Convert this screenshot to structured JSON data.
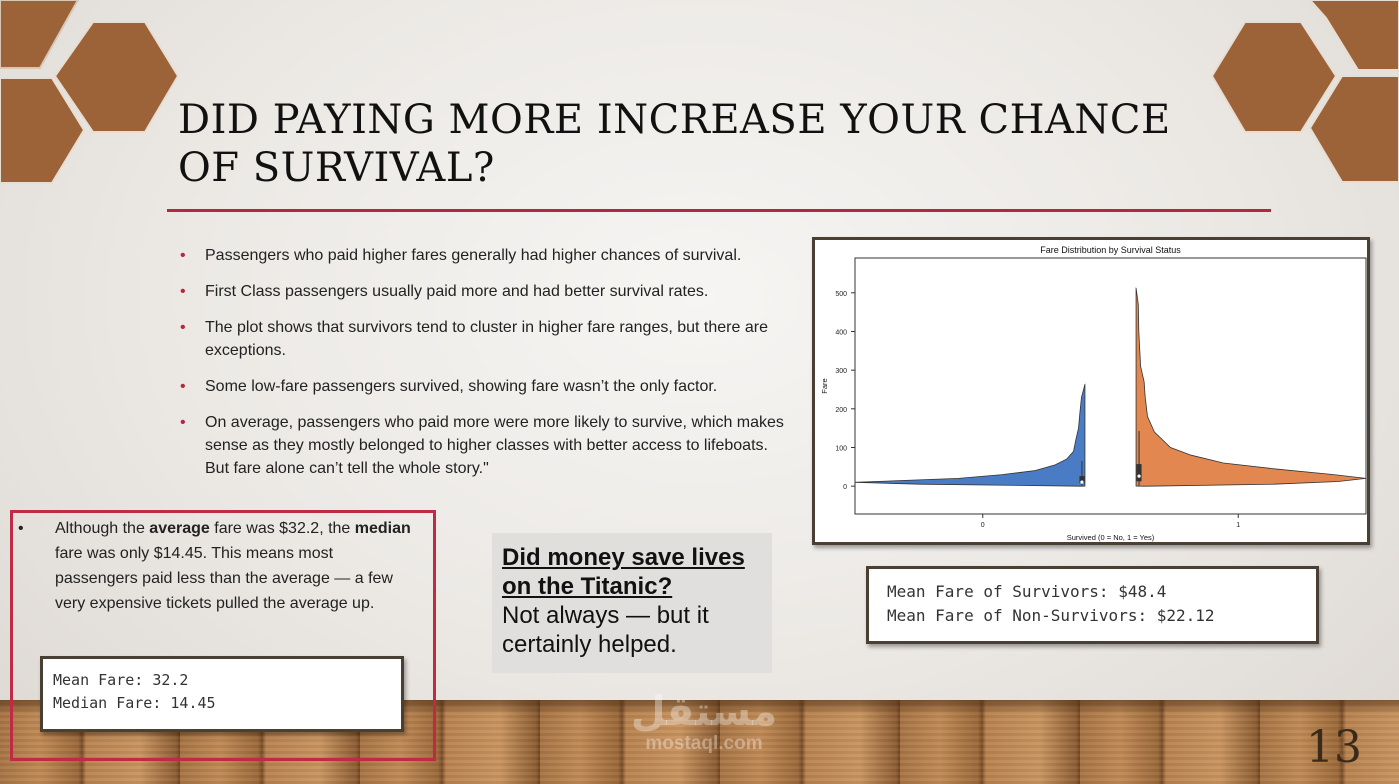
{
  "slide": {
    "title": "Did paying more increase your chance of survival?",
    "page_number": "13",
    "accent_color": "#b5273e",
    "hex_color": "#9c6238"
  },
  "bullets": [
    "Passengers who paid higher fares generally had higher chances of survival.",
    "First Class passengers usually paid more and had better survival rates.",
    "The plot shows that survivors tend to cluster in higher fare ranges, but there are exceptions.",
    "Some low-fare passengers survived, showing fare wasn’t the only factor.",
    "On average, passengers who paid more were more likely to survive, which makes sense as they mostly belonged to higher classes with better access to lifeboats. But fare alone can’t tell the whole story.\""
  ],
  "average_note": {
    "bullet": "•",
    "part1": "Although the ",
    "bold1": "average",
    "part2": " fare was $32.2, the ",
    "bold2": "median",
    "part3": " fare was only $14.45. This means most passengers paid less than the average — a few very expensive tickets pulled the average up."
  },
  "median_output": {
    "line1": "Mean Fare: 32.2",
    "line2": "Median Fare: 14.45"
  },
  "money_box": {
    "heading": "Did money save lives on the Titanic?",
    "body": "Not always — but it certainly helped."
  },
  "survivor_output": {
    "line1": "Mean Fare of Survivors: $48.4",
    "line2": "Mean Fare of Non-Survivors: $22.12"
  },
  "watermark": {
    "arabic": "مستقل",
    "latin": "mostaql.com"
  },
  "chart_data": {
    "type": "violin",
    "title": "Fare Distribution by Survival Status",
    "xlabel": "Survived (0 = No, 1 = Yes)",
    "ylabel": "Fare",
    "categories": [
      "0",
      "1"
    ],
    "ylim": [
      -72,
      590
    ],
    "yticks": [
      0,
      100,
      200,
      300,
      400,
      500
    ],
    "grid": false,
    "series": [
      {
        "color": "#4a7cc6",
        "side": "left",
        "max_density_at": 10,
        "range": [
          0,
          263
        ],
        "quartiles": [
          7.9,
          10.5,
          26
        ],
        "profile": [
          [
            0,
            0.02
          ],
          [
            5,
            0.72
          ],
          [
            10,
            1.0
          ],
          [
            15,
            0.78
          ],
          [
            20,
            0.55
          ],
          [
            30,
            0.36
          ],
          [
            40,
            0.22
          ],
          [
            55,
            0.13
          ],
          [
            70,
            0.08
          ],
          [
            90,
            0.05
          ],
          [
            120,
            0.04
          ],
          [
            150,
            0.028
          ],
          [
            190,
            0.022
          ],
          [
            230,
            0.015
          ],
          [
            263,
            0.0
          ]
        ]
      },
      {
        "color": "#e1874f",
        "side": "right",
        "max_density_at": 20,
        "range": [
          0,
          512
        ],
        "quartiles": [
          12.5,
          26,
          57
        ],
        "profile": [
          [
            0,
            0.05
          ],
          [
            5,
            0.6
          ],
          [
            12,
            0.88
          ],
          [
            20,
            1.0
          ],
          [
            30,
            0.86
          ],
          [
            45,
            0.6
          ],
          [
            60,
            0.38
          ],
          [
            80,
            0.24
          ],
          [
            100,
            0.15
          ],
          [
            140,
            0.08
          ],
          [
            180,
            0.05
          ],
          [
            230,
            0.04
          ],
          [
            270,
            0.035
          ],
          [
            310,
            0.02
          ],
          [
            400,
            0.012
          ],
          [
            470,
            0.01
          ],
          [
            512,
            0.0
          ]
        ]
      }
    ]
  }
}
